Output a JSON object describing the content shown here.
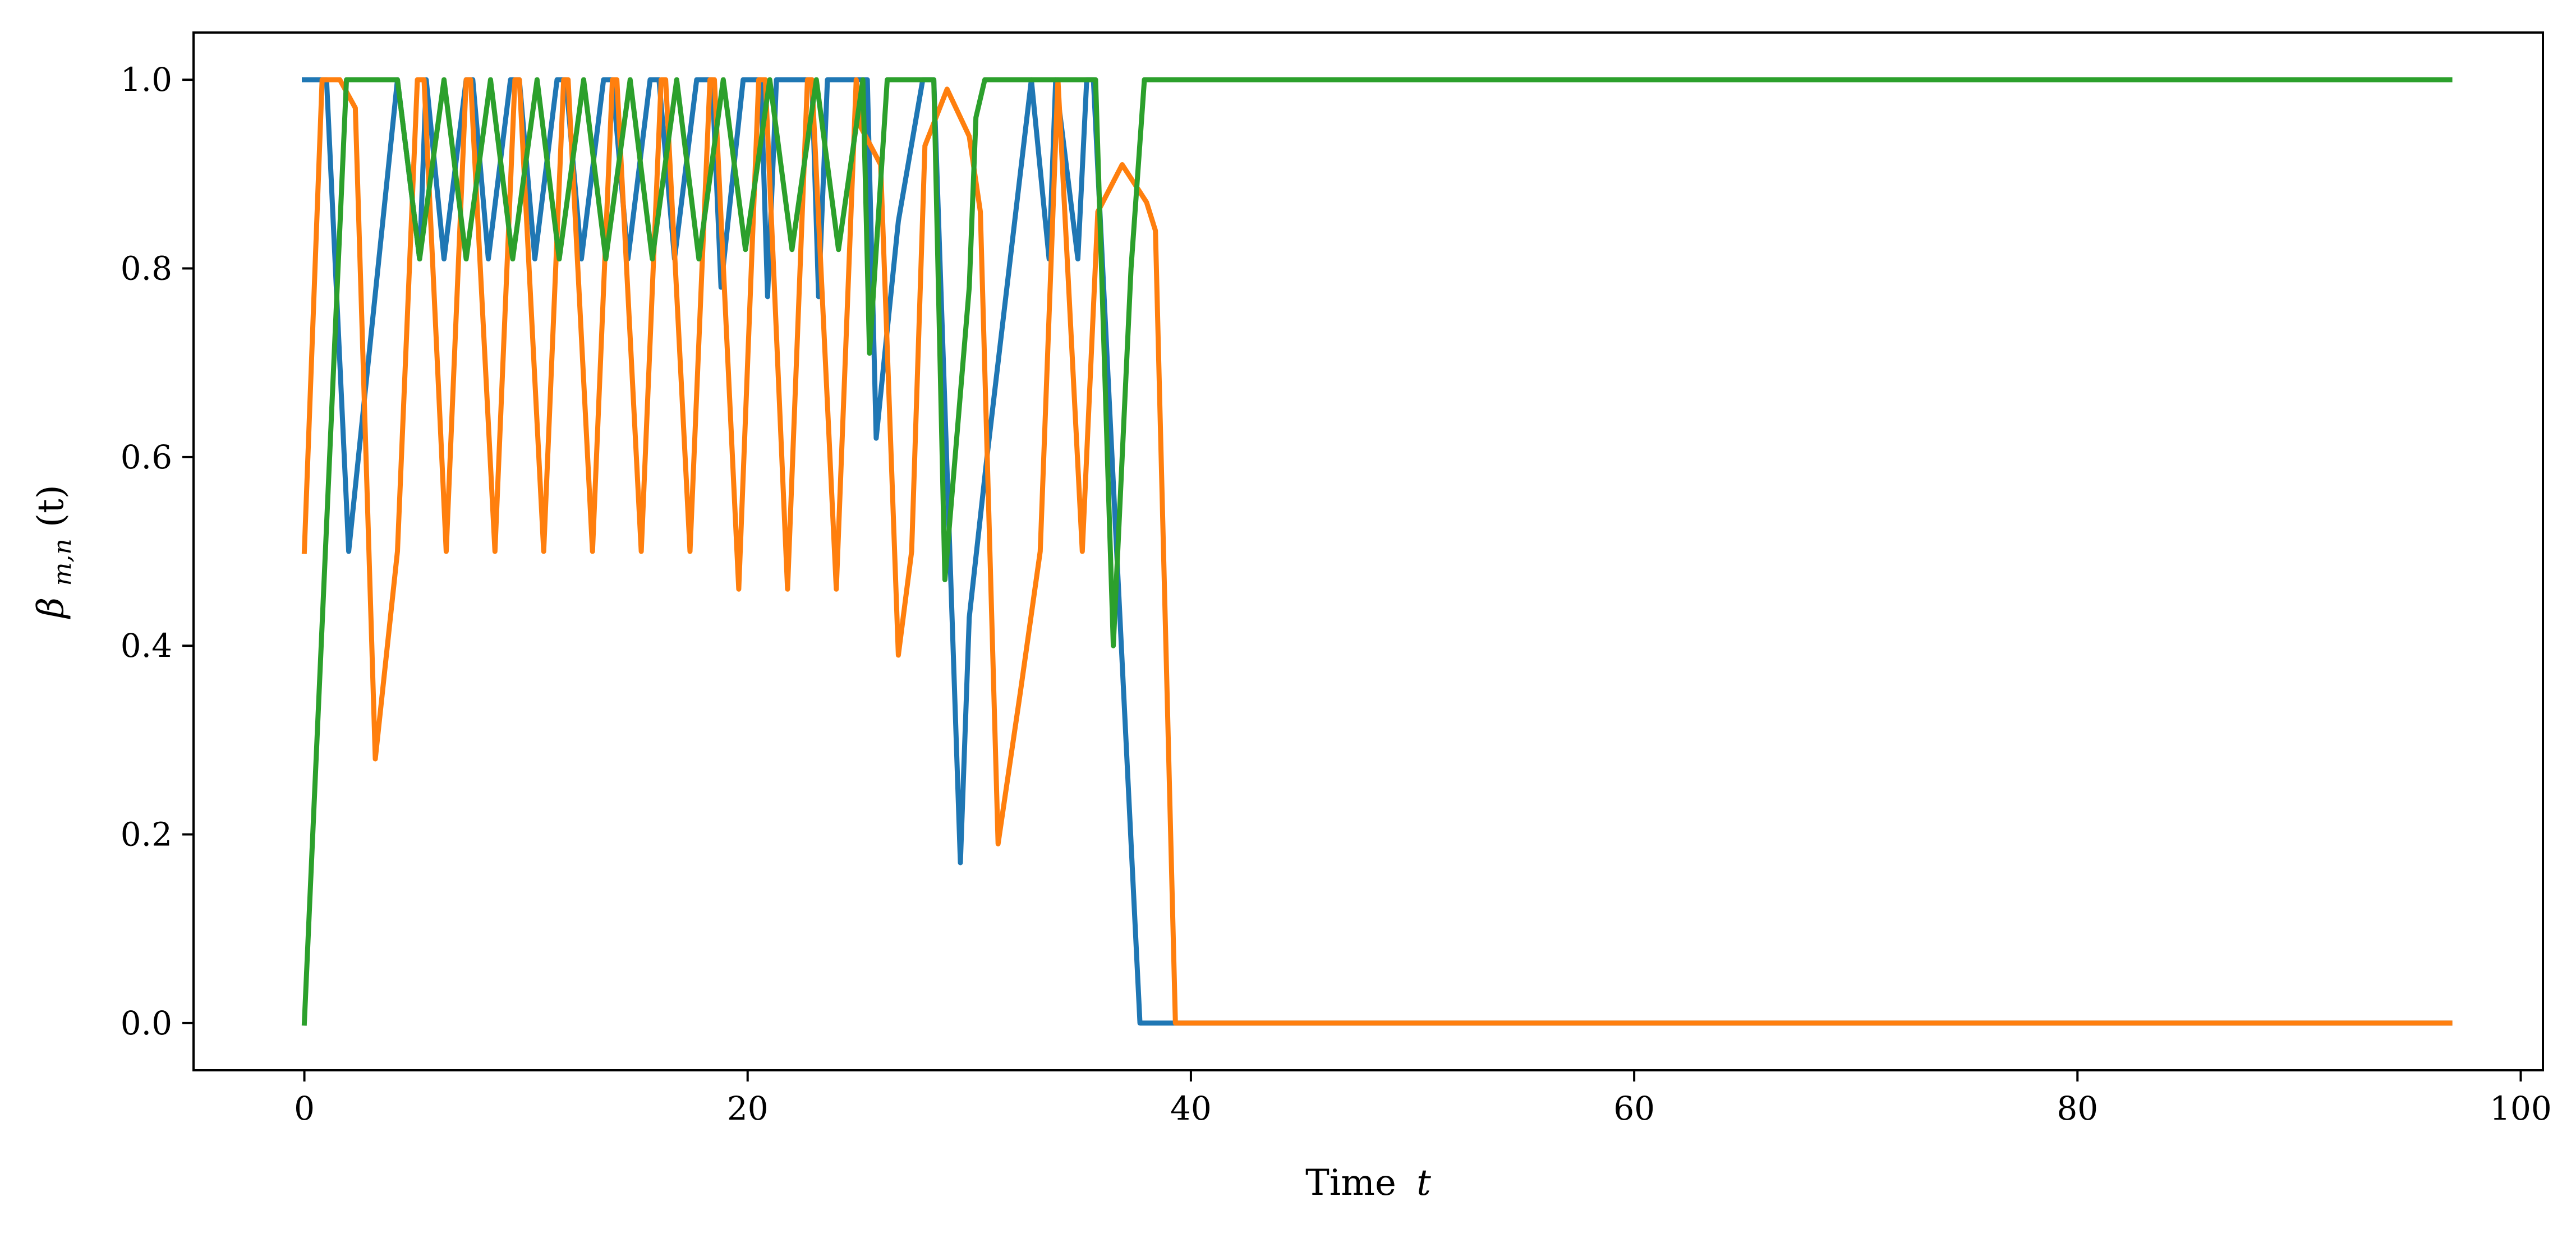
{
  "chart_data": {
    "type": "line",
    "xlabel": "Time",
    "xlabel_var": "t",
    "ylabel": "β",
    "ylabel_sub": "m,n",
    "ylabel_arg": "(t)",
    "xlim": [
      -5,
      101
    ],
    "ylim": [
      -0.05,
      1.05
    ],
    "xticks": [
      0,
      20,
      40,
      60,
      80,
      100
    ],
    "xtick_labels": [
      "0",
      "20",
      "40",
      "60",
      "80",
      "100"
    ],
    "yticks": [
      0.0,
      0.2,
      0.4,
      0.6,
      0.8,
      1.0
    ],
    "ytick_labels": [
      "0.0",
      "0.2",
      "0.4",
      "0.6",
      "0.8",
      "1.0"
    ],
    "grid": false,
    "legend": "none",
    "colors": [
      "#1f77b4",
      "#ff7f0e",
      "#2ca02c"
    ],
    "series": [
      {
        "x": [
          0,
          1.0,
          2.0,
          3.1,
          4.2,
          5.2,
          5.5,
          6.3,
          7.3,
          7.6,
          8.3,
          9.3,
          9.7,
          10.4,
          11.4,
          11.8,
          12.5,
          13.5,
          13.9,
          14.6,
          15.6,
          16.0,
          16.7,
          17.7,
          18.1,
          18.4,
          18.8,
          19.8,
          20.6,
          20.9,
          21.3,
          22.3,
          22.9,
          23.2,
          23.6,
          24.6,
          25.4,
          25.8,
          26.8,
          27.9,
          28.4,
          29.6,
          30.0,
          30.8,
          31.8,
          32.8,
          33.6,
          33.9,
          34.9,
          35.3,
          35.6,
          37.7,
          38.1,
          39.2,
          96.8
        ],
        "y": [
          1.0,
          1.0,
          0.5,
          0.75,
          1.0,
          0.81,
          1.0,
          0.81,
          1.0,
          1.0,
          0.81,
          1.0,
          1.0,
          0.81,
          1.0,
          1.0,
          0.81,
          1.0,
          1.0,
          0.81,
          1.0,
          1.0,
          0.81,
          1.0,
          1.0,
          1.0,
          0.78,
          1.0,
          1.0,
          0.77,
          1.0,
          1.0,
          1.0,
          0.77,
          1.0,
          1.0,
          1.0,
          0.62,
          0.85,
          1.0,
          1.0,
          0.17,
          0.43,
          0.6,
          0.8,
          1.0,
          0.81,
          1.0,
          0.81,
          1.0,
          1.0,
          0.0,
          0.0,
          0.0,
          0.0
        ]
      },
      {
        "x": [
          0,
          0.8,
          1.6,
          2.3,
          3.2,
          4.2,
          5.1,
          5.4,
          6.4,
          7.3,
          7.5,
          8.6,
          9.5,
          9.7,
          10.8,
          11.7,
          11.9,
          13.0,
          13.9,
          14.1,
          15.2,
          16.1,
          16.3,
          17.4,
          18.3,
          18.5,
          19.6,
          20.5,
          20.8,
          21.8,
          22.7,
          22.9,
          24.0,
          24.9,
          25.1,
          26.0,
          26.8,
          27.4,
          28.0,
          29.0,
          30.0,
          30.5,
          31.3,
          32.3,
          33.2,
          34.0,
          35.1,
          35.8,
          36.9,
          38.0,
          38.4,
          39.3,
          96.8
        ],
        "y": [
          0.5,
          1.0,
          1.0,
          0.97,
          0.28,
          0.5,
          1.0,
          1.0,
          0.5,
          1.0,
          1.0,
          0.5,
          1.0,
          1.0,
          0.5,
          1.0,
          1.0,
          0.5,
          1.0,
          1.0,
          0.5,
          1.0,
          1.0,
          0.5,
          1.0,
          1.0,
          0.46,
          1.0,
          1.0,
          0.46,
          1.0,
          1.0,
          0.46,
          1.0,
          0.95,
          0.91,
          0.39,
          0.5,
          0.93,
          0.99,
          0.94,
          0.86,
          0.19,
          0.35,
          0.5,
          1.0,
          0.5,
          0.86,
          0.91,
          0.87,
          0.84,
          0.0,
          0.0
        ]
      },
      {
        "x": [
          0,
          1.9,
          4.2,
          5.2,
          6.3,
          7.3,
          8.4,
          9.4,
          10.5,
          11.5,
          12.6,
          13.6,
          14.7,
          15.7,
          16.8,
          17.8,
          18.9,
          19.9,
          21.0,
          22.0,
          23.1,
          24.1,
          25.2,
          25.5,
          26.3,
          28.4,
          28.9,
          30.0,
          30.3,
          30.7,
          32.9,
          35.7,
          36.5,
          37.3,
          37.9,
          96.8
        ],
        "y": [
          0.0,
          1.0,
          1.0,
          0.81,
          1.0,
          0.81,
          1.0,
          0.81,
          1.0,
          0.81,
          1.0,
          0.81,
          1.0,
          0.81,
          1.0,
          0.81,
          1.0,
          0.82,
          1.0,
          0.82,
          1.0,
          0.82,
          1.0,
          0.71,
          1.0,
          1.0,
          0.47,
          0.78,
          0.96,
          1.0,
          1.0,
          1.0,
          0.4,
          0.8,
          1.0,
          1.0
        ]
      }
    ]
  }
}
